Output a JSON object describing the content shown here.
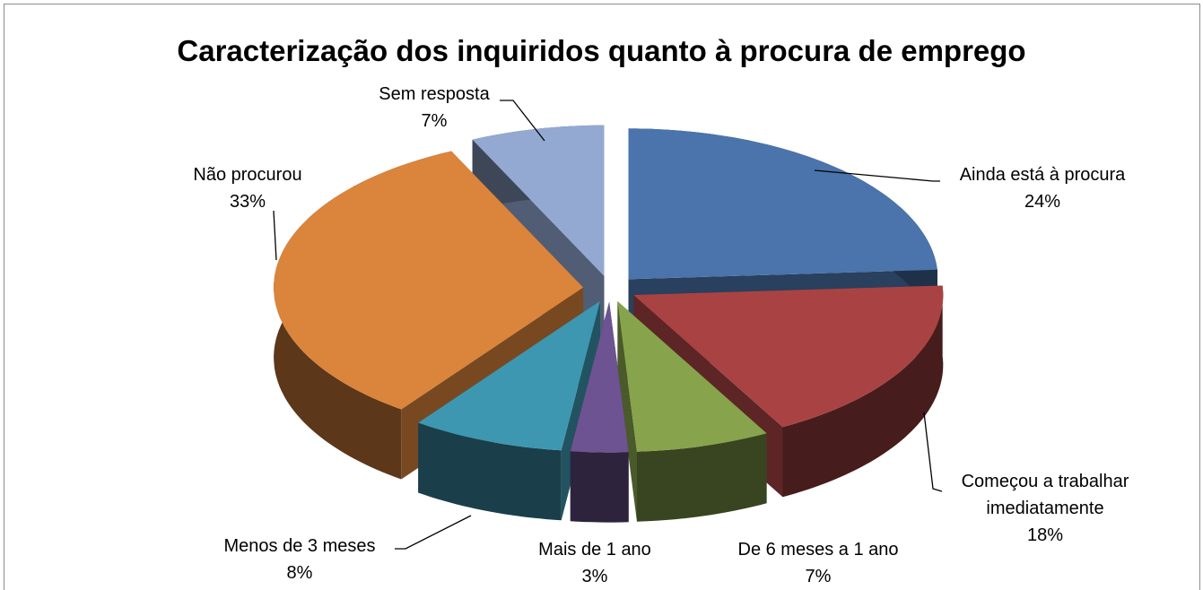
{
  "chart_data": {
    "type": "pie3d",
    "title": "Caracterização dos inquiridos quanto à procura de emprego",
    "categories": [
      "Ainda está à procura",
      "Começou a trabalhar imediatamente",
      "De 6 meses a 1 ano",
      "Mais de 1 ano",
      "Menos de 3 meses",
      "Não procurou",
      "Sem resposta"
    ],
    "values": [
      24,
      18,
      7,
      3,
      8,
      33,
      7
    ],
    "value_labels": [
      "24%",
      "18%",
      "7%",
      "3%",
      "8%",
      "33%",
      "7%"
    ],
    "colors": [
      "#4a74ab",
      "#a94343",
      "#87a34c",
      "#6e5392",
      "#3e97b0",
      "#db843c",
      "#93a9d2"
    ]
  }
}
